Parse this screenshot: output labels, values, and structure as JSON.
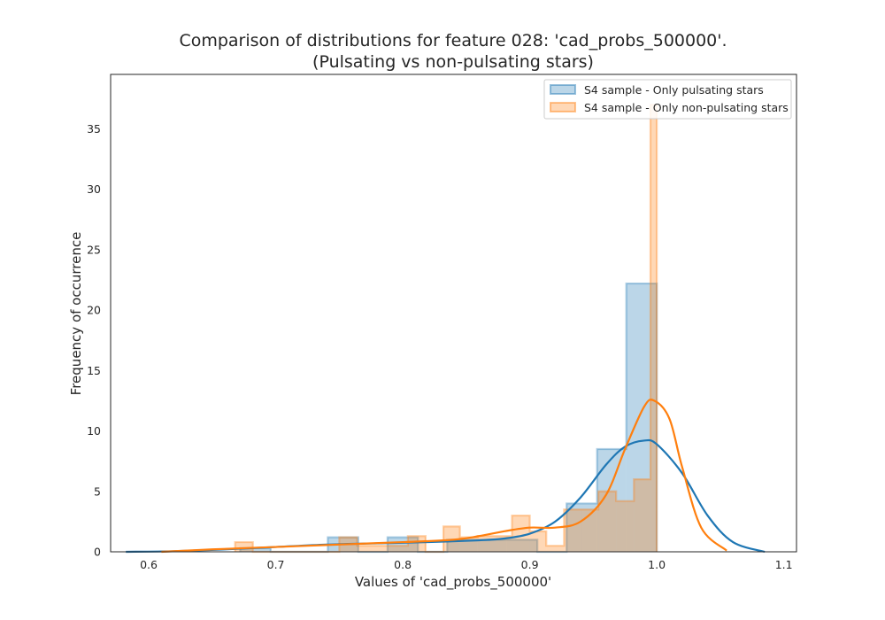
{
  "chart_data": {
    "type": "histogram",
    "title_line1": "Comparison of distributions for feature 028: 'cad_probs_500000'.",
    "title_line2": "(Pulsating vs non-pulsating stars)",
    "xlabel": "Values of 'cad_probs_500000'",
    "ylabel": "Frequency of occurrence",
    "xlim": [
      0.57,
      1.11
    ],
    "ylim": [
      0,
      39.5
    ],
    "xticks": [
      0.6,
      0.7,
      0.8,
      0.9,
      1.0,
      1.1
    ],
    "xtick_labels": [
      "0.6",
      "0.7",
      "0.8",
      "0.9",
      "1.0",
      "1.1"
    ],
    "yticks": [
      0,
      5,
      10,
      15,
      20,
      25,
      30,
      35
    ],
    "ytick_labels": [
      "0",
      "5",
      "10",
      "15",
      "20",
      "25",
      "30",
      "35"
    ],
    "grid": false,
    "legend_position": "top-right",
    "series": [
      {
        "name": "S4 sample - Only pulsating stars",
        "color": "#1f77b4",
        "hist_edges": [
          0.672,
          0.696,
          0.741,
          0.765,
          0.788,
          0.812,
          0.835,
          0.859,
          0.882,
          0.906,
          0.929,
          0.953,
          0.976,
          1.0
        ],
        "hist_heights": [
          0.3,
          0.0,
          1.2,
          0.0,
          1.2,
          0.0,
          1.0,
          1.0,
          1.0,
          0.0,
          4.0,
          8.5,
          22.2
        ],
        "kde_x": [
          0.582,
          0.62,
          0.66,
          0.7,
          0.74,
          0.78,
          0.82,
          0.86,
          0.88,
          0.9,
          0.92,
          0.94,
          0.96,
          0.975,
          0.99,
          1.0,
          1.02,
          1.04,
          1.06,
          1.085
        ],
        "kde_y": [
          0.0,
          0.05,
          0.2,
          0.4,
          0.6,
          0.7,
          0.8,
          0.95,
          1.1,
          1.5,
          2.5,
          4.5,
          7.2,
          8.7,
          9.2,
          8.9,
          6.5,
          3.0,
          0.8,
          0.0
        ]
      },
      {
        "name": "S4 sample - Only non-pulsating stars",
        "color": "#ff7f0e",
        "hist_edges": [
          0.668,
          0.682,
          0.695,
          0.709,
          0.722,
          0.736,
          0.75,
          0.764,
          0.777,
          0.791,
          0.804,
          0.818,
          0.832,
          0.845,
          0.859,
          0.872,
          0.886,
          0.9,
          0.913,
          0.927,
          0.941,
          0.954,
          0.968,
          0.982,
          0.995,
          1.0
        ],
        "hist_heights": [
          0.8,
          0.0,
          0.0,
          0.0,
          0.0,
          0.0,
          1.2,
          0.5,
          0.5,
          0.5,
          1.3,
          0.0,
          2.1,
          1.2,
          1.3,
          1.3,
          3.0,
          1.7,
          0.5,
          3.5,
          3.5,
          5.0,
          4.2,
          6.0,
          37.0
        ],
        "kde_x": [
          0.61,
          0.65,
          0.7,
          0.75,
          0.8,
          0.84,
          0.86,
          0.88,
          0.9,
          0.92,
          0.94,
          0.96,
          0.975,
          0.99,
          0.998,
          1.01,
          1.02,
          1.035,
          1.055
        ],
        "kde_y": [
          0.0,
          0.2,
          0.4,
          0.6,
          0.8,
          1.0,
          1.3,
          1.7,
          2.0,
          2.0,
          2.5,
          4.7,
          8.5,
          12.0,
          12.5,
          11.0,
          7.0,
          2.0,
          0.1
        ]
      }
    ]
  }
}
